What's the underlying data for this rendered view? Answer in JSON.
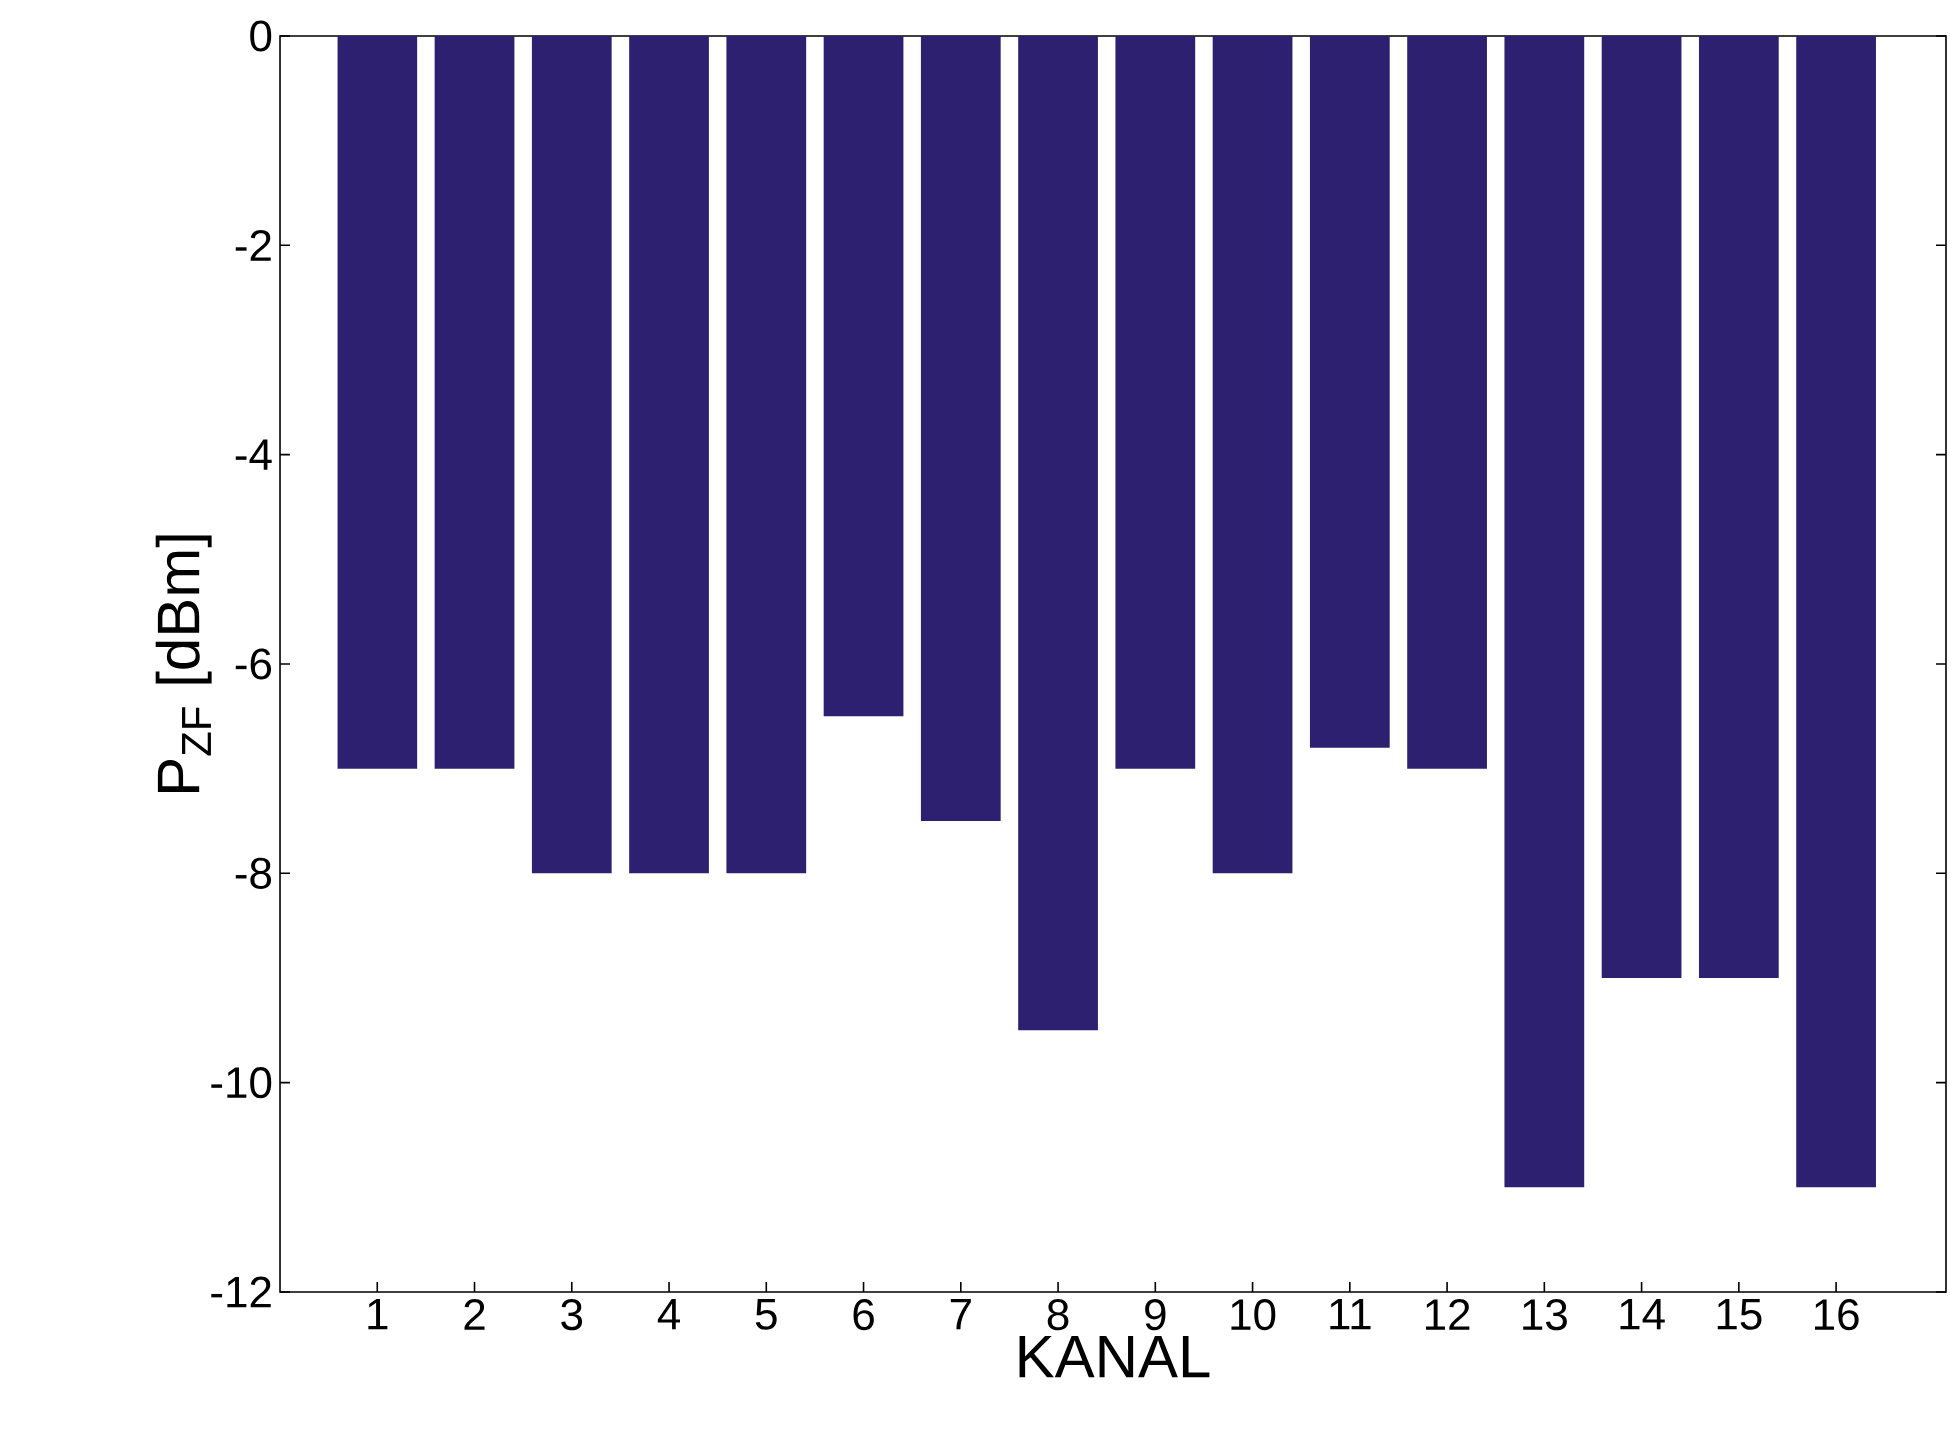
{
  "chart_data": {
    "type": "bar",
    "xlabel": "KANAL",
    "ylabel": "P$_{ZF}$ [dBm]",
    "categories": [
      "1",
      "2",
      "3",
      "4",
      "5",
      "6",
      "7",
      "8",
      "9",
      "10",
      "11",
      "12",
      "13",
      "14",
      "15",
      "16"
    ],
    "values": [
      -7,
      -7,
      -8,
      -8,
      -8,
      -6.5,
      -7.5,
      -9.5,
      -7,
      -8,
      -6.8,
      -7,
      -11,
      -9,
      -9,
      -11
    ],
    "color": "#2e2070",
    "ylim": [
      -12,
      0
    ],
    "yticks": [
      -12,
      -10,
      -8,
      -6,
      -4,
      -2,
      0
    ],
    "grid": false
  }
}
